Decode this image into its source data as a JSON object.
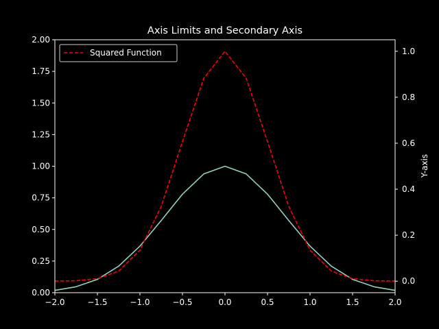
{
  "chart_data": {
    "type": "line",
    "title": "Axis Limits and Secondary Axis",
    "xlabel": "",
    "ylabel": "",
    "ylabel_right": "Y-axis",
    "xlim": [
      -2.0,
      2.0
    ],
    "ylim": [
      0.0,
      2.0
    ],
    "ylim_right": [
      -0.05,
      1.05
    ],
    "x_ticks": [
      -2.0,
      -1.5,
      -1.0,
      -0.5,
      0.0,
      0.5,
      1.0,
      1.5,
      2.0
    ],
    "x_tick_labels": [
      "−2.0",
      "−1.5",
      "−1.0",
      "−0.5",
      "0.0",
      "0.5",
      "1.0",
      "1.5",
      "2.0"
    ],
    "y_ticks": [
      0.0,
      0.25,
      0.5,
      0.75,
      1.0,
      1.25,
      1.5,
      1.75,
      2.0
    ],
    "y_tick_labels": [
      "0.00",
      "0.25",
      "0.50",
      "0.75",
      "1.00",
      "1.25",
      "1.50",
      "1.75",
      "2.00"
    ],
    "y_ticks_right": [
      0.0,
      0.2,
      0.4,
      0.6,
      0.8,
      1.0
    ],
    "y_tick_labels_right": [
      "0.0",
      "0.2",
      "0.4",
      "0.6",
      "0.8",
      "1.0"
    ],
    "grid": false,
    "legend_placement": "top-left",
    "series": [
      {
        "axis": "left",
        "color": "#8dd3c7",
        "style": "solid",
        "x": [
          -2.0,
          -1.75,
          -1.5,
          -1.25,
          -1.0,
          -0.75,
          -0.5,
          -0.25,
          0.0,
          0.25,
          0.5,
          0.75,
          1.0,
          1.25,
          1.5,
          1.75,
          2.0
        ],
        "values": [
          0.018,
          0.047,
          0.105,
          0.21,
          0.368,
          0.57,
          0.779,
          0.939,
          1.0,
          0.939,
          0.779,
          0.57,
          0.368,
          0.21,
          0.105,
          0.047,
          0.018
        ]
      },
      {
        "axis": "right",
        "name": "Squared Function",
        "color": "#ff0000",
        "style": "dashed",
        "x": [
          -2.0,
          -1.75,
          -1.5,
          -1.25,
          -1.0,
          -0.75,
          -0.5,
          -0.25,
          0.0,
          0.25,
          0.5,
          0.75,
          1.0,
          1.25,
          1.5,
          1.75,
          2.0
        ],
        "values": [
          0.0003,
          0.002,
          0.011,
          0.044,
          0.135,
          0.325,
          0.607,
          0.882,
          1.0,
          0.882,
          0.607,
          0.325,
          0.135,
          0.044,
          0.011,
          0.002,
          0.0003
        ]
      }
    ]
  }
}
